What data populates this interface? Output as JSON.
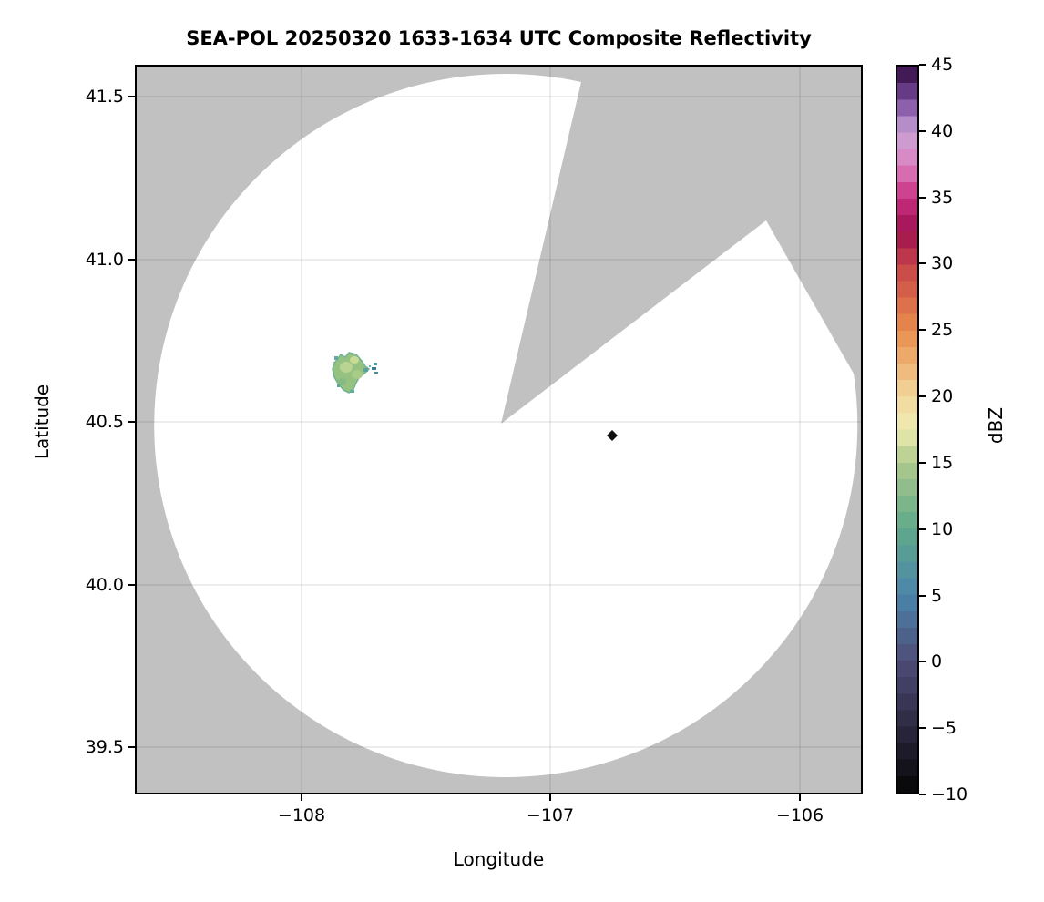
{
  "title": "SEA-POL 20250320 1633-1634 UTC Composite Reflectivity",
  "axes": {
    "xlabel": "Longitude",
    "ylabel": "Latitude",
    "x_ticks": [
      "−108",
      "−107",
      "−106"
    ],
    "y_ticks": [
      "41.5",
      "41.0",
      "40.5",
      "40.0",
      "39.5"
    ]
  },
  "colorbar": {
    "label": "dBZ",
    "ticks": [
      "45",
      "40",
      "35",
      "30",
      "25",
      "20",
      "15",
      "10",
      "5",
      "0",
      "−5",
      "−10"
    ],
    "min": -10,
    "max": 45,
    "band_step_dbz": 1.25,
    "stops": [
      {
        "v": -10,
        "c": "#050505"
      },
      {
        "v": -5,
        "c": "#2c2840"
      },
      {
        "v": 0,
        "c": "#4e4d78"
      },
      {
        "v": 5,
        "c": "#4b85ab"
      },
      {
        "v": 10,
        "c": "#5fa98a"
      },
      {
        "v": 15,
        "c": "#aec98b"
      },
      {
        "v": 17.5,
        "c": "#eeecb2"
      },
      {
        "v": 20,
        "c": "#f2d89c"
      },
      {
        "v": 25,
        "c": "#e98c4c"
      },
      {
        "v": 30,
        "c": "#c64449"
      },
      {
        "v": 32.5,
        "c": "#9d1050"
      },
      {
        "v": 35,
        "c": "#c92e7e"
      },
      {
        "v": 37.5,
        "c": "#dc82c0"
      },
      {
        "v": 40,
        "c": "#c9a3d6"
      },
      {
        "v": 42.5,
        "c": "#7a4a9e"
      },
      {
        "v": 45,
        "c": "#2f0a3c"
      }
    ]
  },
  "colors": {
    "masked_gray": "#c1c1c1",
    "scan_area": "#ffffff",
    "grid": "rgba(0,0,0,0.14)",
    "marker": "#111111"
  },
  "chart_data": {
    "type": "heatmap",
    "title": "SEA-POL 20250320 1633-1634 UTC Composite Reflectivity",
    "xlabel": "Longitude",
    "ylabel": "Latitude",
    "xlim": [
      -108.67,
      -105.75
    ],
    "ylim": [
      39.36,
      41.6
    ],
    "x_ticks": [
      -108,
      -107,
      -106
    ],
    "y_ticks": [
      41.5,
      41.0,
      40.5,
      40.0,
      39.5
    ],
    "grid": true,
    "colorbar": {
      "label": "dBZ",
      "range": [
        -10,
        45
      ],
      "tick_step": 5,
      "colormap": "dark-blue-teal-green-yellow-orange-red-magenta-purple spectral (ChaseSpectral-like), discrete ~1.25 dBZ bands"
    },
    "radar": {
      "center_lon": -107.2,
      "center_lat": 40.5,
      "scan_radius_lon_deg": 1.42,
      "scan_radius_lat_deg": 1.09,
      "scan_area_color": "white (no echo)",
      "masked_no_data_color": "gray"
    },
    "blocked_sector": {
      "azimuth_start_deg_from_north": 12,
      "azimuth_end_deg_from_north": 82,
      "note": "gray no-data wedge from radar center; a white notch re-enters from the SE edge with apex near lon -106.95, lat 41.13"
    },
    "echoes": [
      {
        "lon": -107.8,
        "lat": 40.655,
        "approx_width_deg": 0.17,
        "approx_height_deg": 0.13,
        "dbz_range": [
          5,
          17
        ],
        "description": "small light-green/teal convective echo"
      },
      {
        "lon": -107.71,
        "lat": 40.665,
        "approx_width_deg": 0.03,
        "approx_height_deg": 0.04,
        "dbz_range": [
          3,
          8
        ],
        "description": "tiny teal speck east of main echo"
      }
    ],
    "markers": [
      {
        "lon": -106.75,
        "lat": 40.46,
        "shape": "diamond",
        "color": "black"
      }
    ]
  }
}
